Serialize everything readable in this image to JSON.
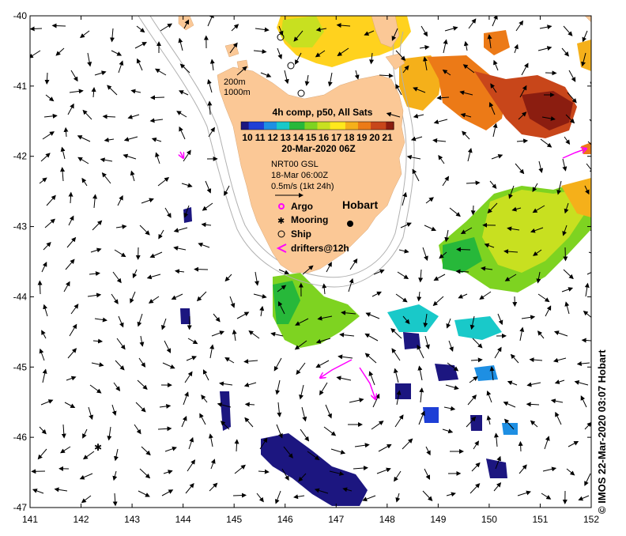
{
  "map": {
    "lon_ticks": [
      "141",
      "142",
      "143",
      "144",
      "145",
      "146",
      "147",
      "148",
      "149",
      "150",
      "151",
      "152"
    ],
    "lat_ticks": [
      "-40",
      "-41",
      "-42",
      "-43",
      "-44",
      "-45",
      "-46",
      "-47"
    ],
    "lon_range": [
      141,
      152
    ],
    "lat_range": [
      -47,
      -40
    ]
  },
  "contours": {
    "label_200": "200m",
    "label_1000": "1000m"
  },
  "colorbar": {
    "title": "4h comp, p50, All Sats",
    "ticks": [
      "10",
      "11",
      "12",
      "13",
      "14",
      "15",
      "16",
      "17",
      "18",
      "19",
      "20",
      "21"
    ],
    "date": "20-Mar-2020 06Z",
    "colors": [
      "#1c1680",
      "#1e3fd6",
      "#1e8fe3",
      "#19c9c9",
      "#27b83a",
      "#7ed321",
      "#c8e020",
      "#ffe81c",
      "#f5b01a",
      "#ec7a17",
      "#c8461a",
      "#8b1d10"
    ]
  },
  "currents": {
    "product": "NRT00 GSL",
    "time": "18-Mar 06:00Z",
    "scale": "0.5m/s (1kt 24h)"
  },
  "legend": {
    "argo": "Argo",
    "mooring": "Mooring",
    "ship": "Ship",
    "drifters": "drifters@12h"
  },
  "place": {
    "hobart": "Hobart"
  },
  "credit": "© IMOS 22-Mar-2020 03:07 Hobart",
  "colors": {
    "land": "#fbc896",
    "drifter": "#ff00ff",
    "argo": "#ff00ff"
  }
}
